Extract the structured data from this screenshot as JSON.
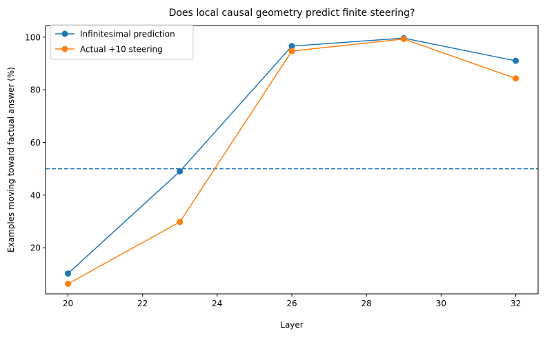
{
  "chart_data": {
    "type": "line",
    "title": "Does local causal geometry predict finite steering?",
    "xlabel": "Layer",
    "ylabel": "Examples moving toward factual answer (%)",
    "xlim": [
      19.4,
      32.6
    ],
    "ylim": [
      2.5,
      104.4
    ],
    "xticks": [
      20,
      22,
      24,
      26,
      28,
      30,
      32
    ],
    "yticks": [
      20,
      40,
      60,
      80,
      100
    ],
    "x": [
      20,
      23,
      26,
      29,
      32
    ],
    "series": [
      {
        "name": "Infinitesimal prediction",
        "color": "#1f77b4",
        "values": [
          10.2,
          49.0,
          96.6,
          99.6,
          91.0
        ]
      },
      {
        "name": "Actual +10 steering",
        "color": "#ff7f0e",
        "values": [
          6.3,
          29.8,
          94.7,
          99.3,
          84.3
        ]
      }
    ],
    "reference_line": {
      "y": 50,
      "style": "dashed",
      "color": "#1f77b4"
    },
    "grid": false,
    "legend": "top-left"
  }
}
